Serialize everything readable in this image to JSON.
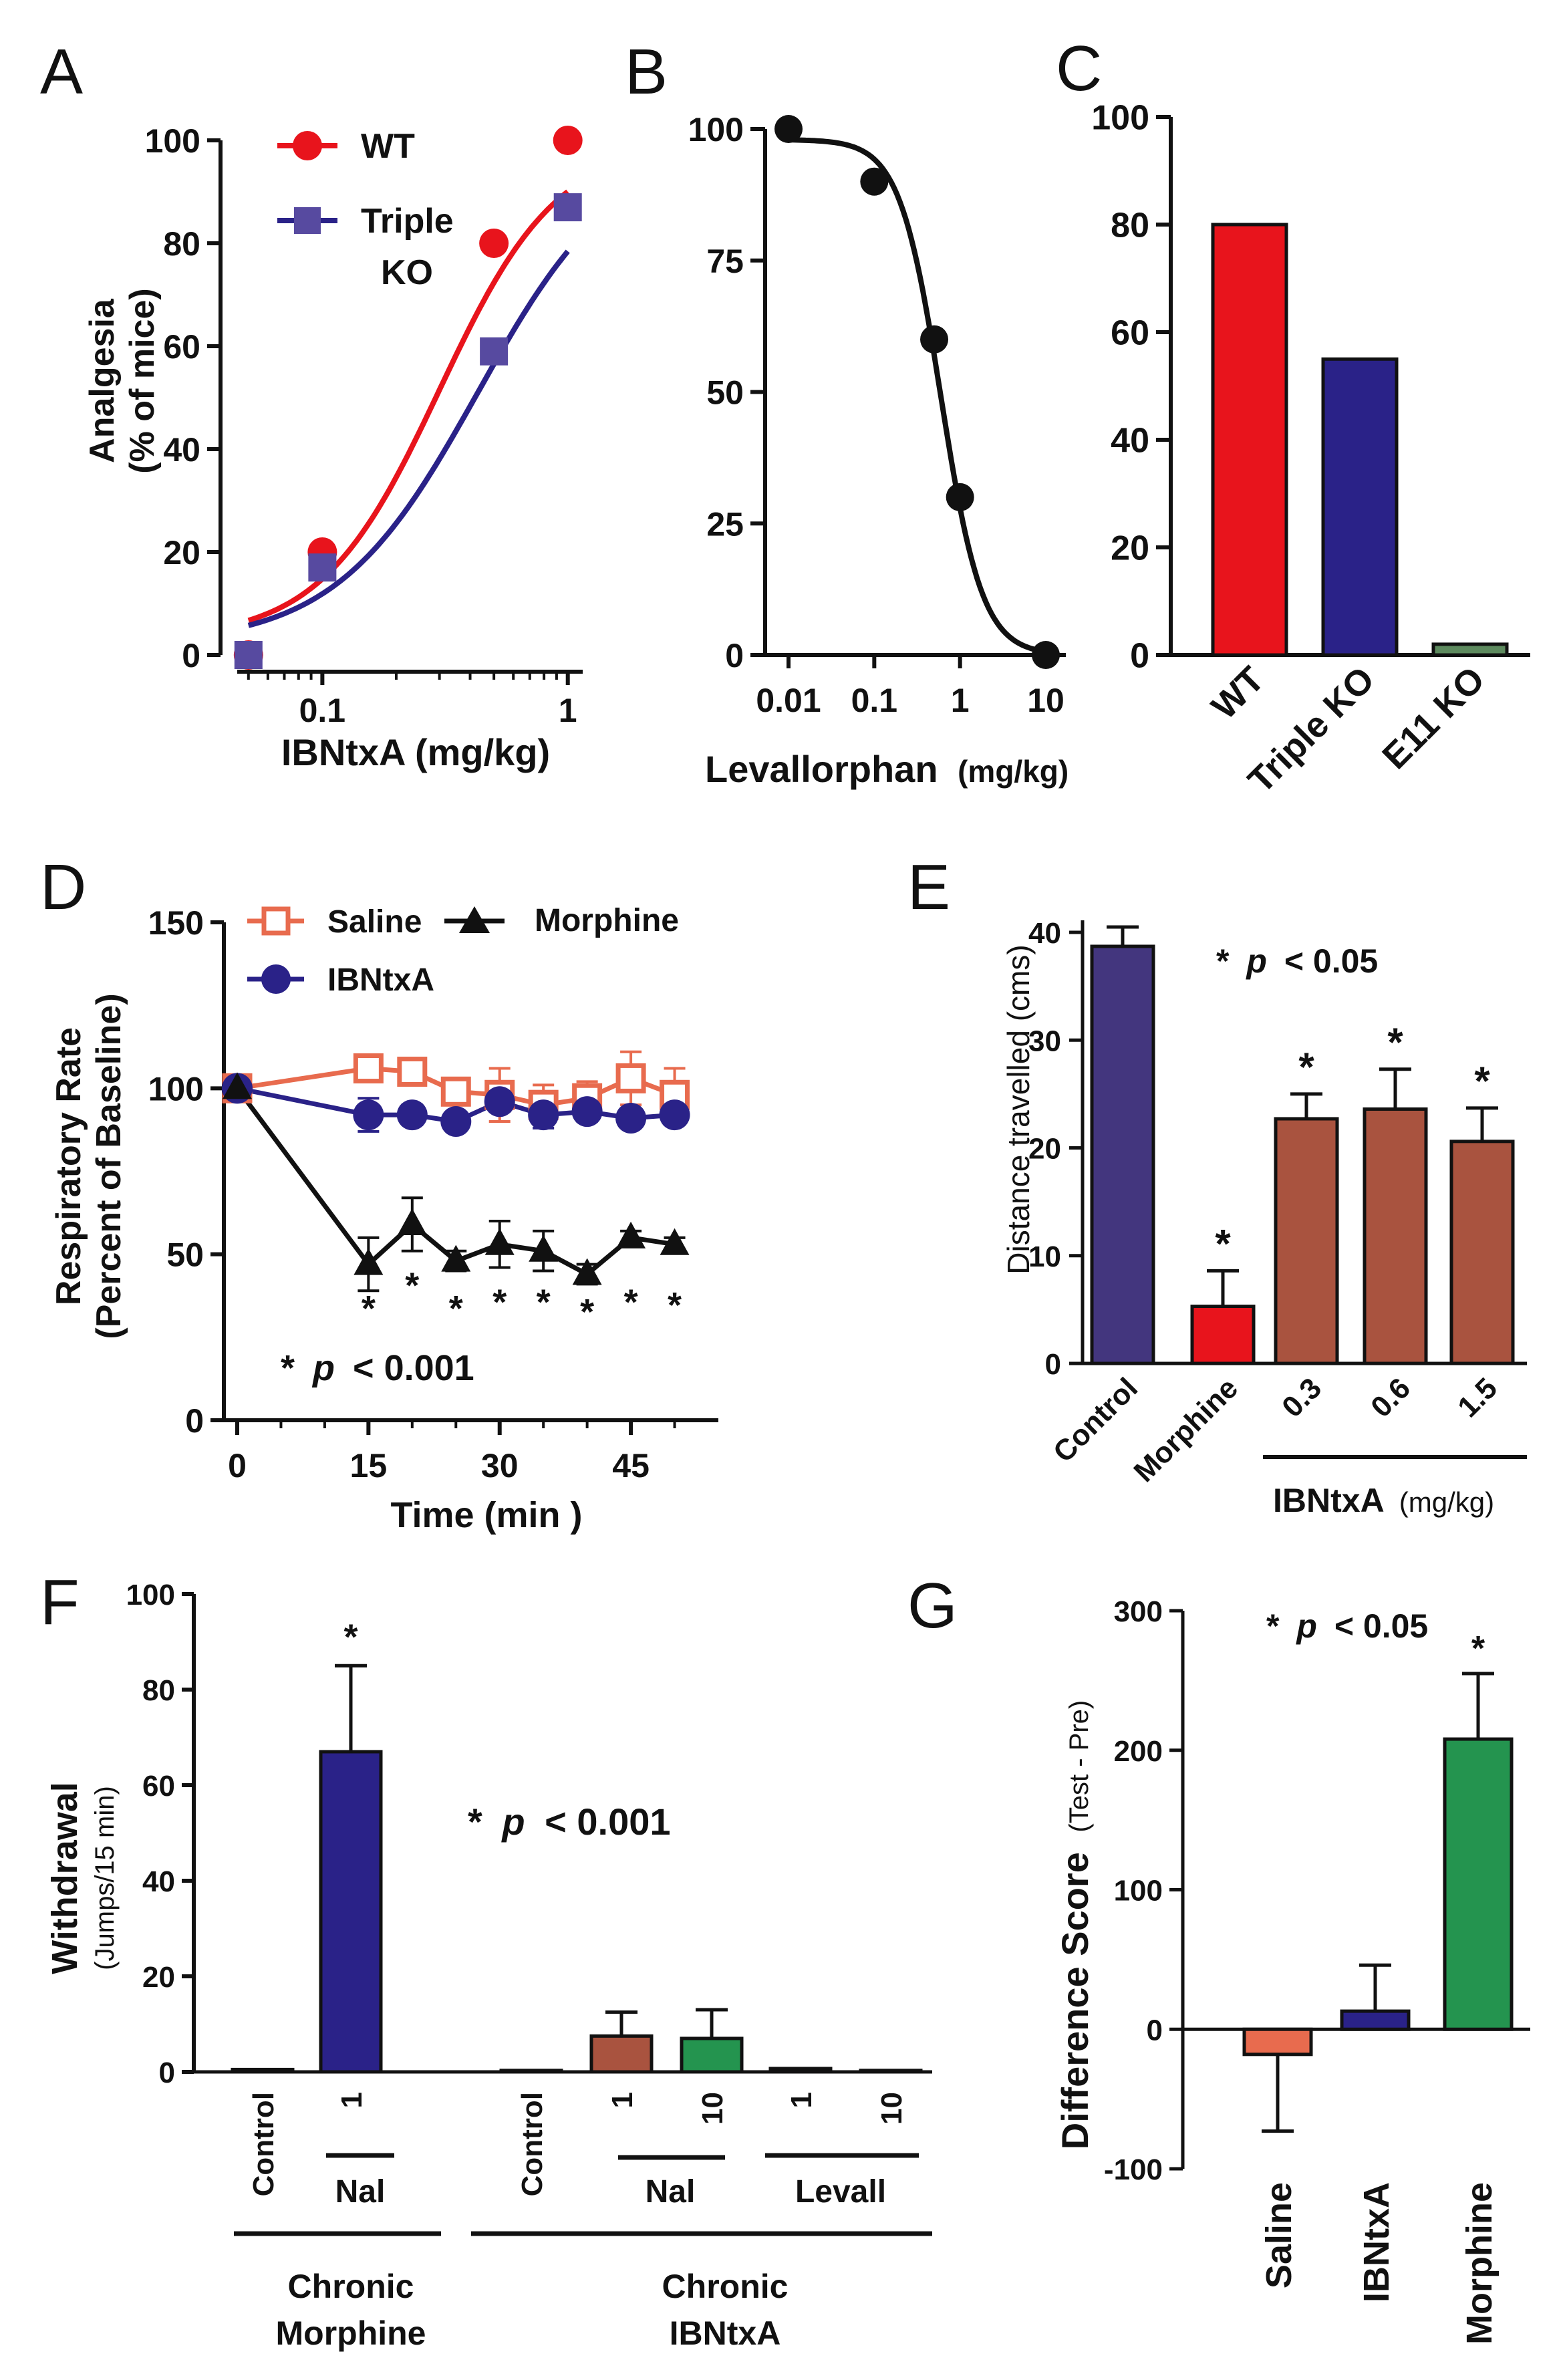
{
  "colors": {
    "red": "#e8141c",
    "navy": "#2a2288",
    "orange": "#e86b4e",
    "black": "#111111",
    "purple": "#43367e",
    "brown": "#a9533f",
    "green": "#24944f",
    "sage": "#5d8a5e"
  },
  "chart_data": [
    {
      "panel": "A",
      "type": "line",
      "letter": "A",
      "ylabel": [
        "Analgesia",
        "(% of mice)"
      ],
      "xlabel": "IBNtxA (mg/kg)",
      "xscale": "log",
      "xlim": [
        0.045,
        1.15
      ],
      "ylim": [
        0,
        100
      ],
      "yticks": [
        0,
        20,
        40,
        60,
        80,
        100
      ],
      "xticks": [
        {
          "v": 0.1,
          "label": "0.1"
        },
        {
          "v": 1,
          "label": "1"
        }
      ],
      "series": [
        {
          "name": "WT",
          "legend": "WT",
          "marker": "circle",
          "color": "#e8141c",
          "points": [
            [
              0.05,
              0
            ],
            [
              0.1,
              20
            ],
            [
              0.5,
              80
            ],
            [
              1,
              100
            ]
          ],
          "fit": {
            "bottom": 3,
            "top": 100,
            "ec50": 0.3,
            "hill": 1.8
          }
        },
        {
          "name": "Triple KO",
          "legend": [
            "Triple",
            "KO"
          ],
          "marker": "square",
          "color": "#3f3591",
          "points": [
            [
              0.05,
              0
            ],
            [
              0.1,
              17
            ],
            [
              0.5,
              59
            ],
            [
              1,
              87
            ]
          ],
          "fit": {
            "bottom": 2,
            "top": 100,
            "ec50": 0.43,
            "hill": 1.5
          }
        }
      ]
    },
    {
      "panel": "B",
      "type": "line",
      "letter": "B",
      "xlabel": "Levallorphan",
      "xlabel_unit": "(mg/kg)",
      "xscale": "log",
      "xlim": [
        0.01,
        10
      ],
      "ylim": [
        0,
        100
      ],
      "yticks": [
        0,
        25,
        50,
        75,
        100
      ],
      "xticks": [
        {
          "v": 0.01,
          "label": "0.01"
        },
        {
          "v": 0.1,
          "label": "0.1"
        },
        {
          "v": 1,
          "label": "1"
        },
        {
          "v": 10,
          "label": "10"
        }
      ],
      "series": [
        {
          "name": "Levallorphan",
          "marker": "circle",
          "color": "#111111",
          "points": [
            [
              0.01,
              100
            ],
            [
              0.1,
              90
            ],
            [
              0.5,
              60
            ],
            [
              1,
              30
            ],
            [
              10,
              0
            ]
          ],
          "fit": {
            "top": 98,
            "ic50": 0.6,
            "hill": 1.8
          }
        }
      ]
    },
    {
      "panel": "C",
      "type": "bar",
      "letter": "C",
      "ylim": [
        0,
        100
      ],
      "yticks": [
        0,
        20,
        40,
        60,
        80,
        100
      ],
      "categories": [
        "WT",
        "Triple KO",
        "E11 KO"
      ],
      "values": [
        80,
        55,
        2
      ],
      "colors": [
        "#e8141c",
        "#2a2288",
        "#5d8a5e"
      ]
    },
    {
      "panel": "D",
      "type": "line",
      "letter": "D",
      "ylabel": [
        "Respiratory Rate",
        "(Percent of Baseline)"
      ],
      "xlabel": "Time (min )",
      "xlim": [
        0,
        55
      ],
      "ylim": [
        0,
        150
      ],
      "yticks": [
        0,
        50,
        100,
        150
      ],
      "xticks": [
        {
          "v": 0,
          "label": "0"
        },
        {
          "v": 15,
          "label": "15"
        },
        {
          "v": 30,
          "label": "30"
        },
        {
          "v": 45,
          "label": "45"
        }
      ],
      "legend": [
        "Saline",
        "Morphine",
        "IBNtxA"
      ],
      "note_star": "*",
      "note_p": "p",
      "note_rest": "< 0.001",
      "series": [
        {
          "name": "Saline",
          "marker": "open-square",
          "color": "#e86b4e",
          "x": [
            0,
            15,
            20,
            25,
            30,
            35,
            40,
            45,
            50
          ],
          "y": [
            100,
            106,
            105,
            99,
            98,
            95,
            97,
            103,
            98
          ],
          "err": [
            0,
            4,
            4,
            3,
            8,
            6,
            5,
            8,
            8
          ]
        },
        {
          "name": "IBNtxA",
          "marker": "circle",
          "color": "#2a2288",
          "x": [
            0,
            15,
            20,
            25,
            30,
            35,
            40,
            45,
            50
          ],
          "y": [
            100,
            92,
            92,
            90,
            96,
            92,
            93,
            91,
            92
          ],
          "err": [
            0,
            5,
            3,
            2,
            3,
            4,
            3,
            2,
            3
          ]
        },
        {
          "name": "Morphine",
          "marker": "triangle",
          "color": "#111111",
          "x": [
            0,
            15,
            20,
            25,
            30,
            35,
            40,
            45,
            50
          ],
          "y": [
            100,
            47,
            59,
            48,
            53,
            51,
            44,
            55,
            53
          ],
          "err": [
            0,
            8,
            8,
            3,
            7,
            6,
            3,
            2,
            2
          ]
        }
      ],
      "stars": [
        {
          "x": 15,
          "y": 36,
          "t": "*"
        },
        {
          "x": 20,
          "y": 43,
          "t": "*"
        },
        {
          "x": 25,
          "y": 36,
          "t": "*"
        },
        {
          "x": 30,
          "y": 38,
          "t": "*"
        },
        {
          "x": 35,
          "y": 38,
          "t": "*"
        },
        {
          "x": 40,
          "y": 35,
          "t": "*"
        },
        {
          "x": 45,
          "y": 38,
          "t": "*"
        },
        {
          "x": 50,
          "y": 37,
          "t": "*"
        }
      ]
    },
    {
      "panel": "E",
      "type": "bar",
      "letter": "E",
      "ylabel": "Distance travelled (cms)",
      "ylim": [
        0,
        40
      ],
      "yticks": [
        0,
        10,
        20,
        30,
        40
      ],
      "categories": [
        "Control",
        "Morphine",
        "0.3",
        "0.6",
        "1.5"
      ],
      "values": [
        38.7,
        5.3,
        22.7,
        23.6,
        20.6
      ],
      "errors": [
        1.8,
        3.3,
        2.3,
        3.7,
        3.1
      ],
      "stars": [
        "",
        "*",
        "*",
        "*",
        "*"
      ],
      "colors": [
        "#43367e",
        "#e8141c",
        "#a9533f",
        "#a9533f",
        "#a9533f"
      ],
      "group_label": "IBNtxA",
      "group_unit": "(mg/kg)",
      "note_star": "*",
      "note_p": "p",
      "note_rest": "< 0.05"
    },
    {
      "panel": "F",
      "type": "bar",
      "letter": "F",
      "ylabel": [
        "Withdrawal",
        "(Jumps/15 min)"
      ],
      "ylim": [
        0,
        100
      ],
      "yticks": [
        0,
        20,
        40,
        60,
        80,
        100
      ],
      "categories": [
        "Control",
        "1",
        "Control",
        "1",
        "10",
        "1",
        "10"
      ],
      "values": [
        0.5,
        67,
        0.3,
        7.5,
        7,
        0.7,
        0.3
      ],
      "errors": [
        0,
        18,
        0,
        5,
        6,
        0,
        0
      ],
      "stars": [
        "",
        "*",
        "",
        "",
        "",
        "",
        ""
      ],
      "colors": [
        "#2a2288",
        "#2a2288",
        "#a9533f",
        "#a9533f",
        "#24944f",
        "#24944f",
        "#24944f"
      ],
      "subgroups": [
        "Nal",
        "Nal",
        "Levall"
      ],
      "groups": [
        [
          "Chronic",
          "Morphine"
        ],
        [
          "Chronic",
          "IBNtxA"
        ]
      ],
      "note_star": "*",
      "note_p": "p",
      "note_rest": "< 0.001"
    },
    {
      "panel": "G",
      "type": "bar",
      "letter": "G",
      "ylabel": "Difference Score",
      "ylabel_unit": "(Test - Pre)",
      "ylim": [
        -100,
        300
      ],
      "yticks": [
        -100,
        0,
        100,
        200,
        300
      ],
      "categories": [
        "Saline",
        "IBNtxA",
        "Morphine"
      ],
      "values": [
        -18,
        13,
        208
      ],
      "errors": [
        55,
        33,
        47
      ],
      "stars": [
        "",
        "",
        "*"
      ],
      "colors": [
        "#e86b4e",
        "#2a2288",
        "#24944f"
      ],
      "note_star": "*",
      "note_p": "p",
      "note_rest": "< 0.05"
    }
  ]
}
